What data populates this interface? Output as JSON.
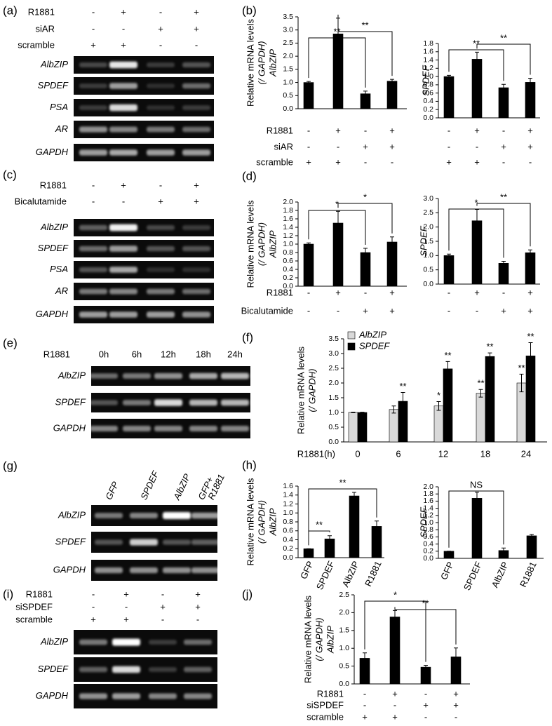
{
  "gels": [
    {
      "panel": "(a)",
      "conditions": [
        {
          "name": "R1881",
          "signs": [
            "-",
            "+",
            "-",
            "+"
          ]
        },
        {
          "name": "siAR",
          "signs": [
            "-",
            "-",
            "+",
            "+"
          ]
        },
        {
          "name": "scramble",
          "signs": [
            "+",
            "+",
            "-",
            "-"
          ]
        }
      ],
      "rows": [
        "AlbZIP",
        "SPDEF",
        "PSA",
        "AR",
        "GAPDH"
      ]
    },
    {
      "panel": "(c)",
      "conditions": [
        {
          "name": "R1881",
          "signs": [
            "-",
            "+",
            "-",
            "+"
          ]
        },
        {
          "name": "Bicalutamide",
          "signs": [
            "-",
            "-",
            "+",
            "+"
          ]
        }
      ],
      "rows": [
        "AlbZIP",
        "SPDEF",
        "PSA",
        "AR",
        "GAPDH"
      ]
    },
    {
      "panel": "(e)",
      "conditions": [
        {
          "name": "R1881",
          "signs": [
            "0h",
            "6h",
            "12h",
            "18h",
            "24h"
          ]
        }
      ],
      "rows": [
        "AlbZIP",
        "SPDEF",
        "GAPDH"
      ]
    },
    {
      "panel": "(g)",
      "lanes": [
        [
          "GFP"
        ],
        [
          "SPDEF"
        ],
        [
          "AlbZIP"
        ],
        [
          "GFP+",
          "R1881"
        ]
      ],
      "rows": [
        "AlbZIP",
        "SPDEF",
        "GAPDH"
      ]
    },
    {
      "panel": "(i)",
      "conditions": [
        {
          "name": "R1881",
          "signs": [
            "-",
            "+",
            "-",
            "+"
          ]
        },
        {
          "name": "siSPDEF",
          "signs": [
            "-",
            "-",
            "+",
            "+"
          ]
        },
        {
          "name": "scramble",
          "signs": [
            "+",
            "+",
            "-",
            "-"
          ]
        }
      ],
      "rows": [
        "AlbZIP",
        "SPDEF",
        "GAPDH"
      ]
    }
  ],
  "chart_data": [
    {
      "type": "bar",
      "panel": "(b)",
      "ylabel": [
        "Relative mRNA levels",
        "(/ GAPDH)",
        "AlbZIP"
      ],
      "ylim": [
        0,
        3.5
      ],
      "yticks": [
        {
          "value": 0,
          "label": "0.0"
        },
        0.5,
        {
          "value": 1,
          "label": "1.0"
        },
        1.5,
        {
          "value": 2,
          "label": "2.0"
        },
        2.5,
        {
          "value": 3,
          "label": "3.0"
        },
        3.5
      ],
      "values": [
        1.0,
        2.85,
        0.57,
        1.05
      ],
      "errors": [
        0.04,
        0.6,
        0.1,
        0.07
      ],
      "color": "#000000",
      "conditions": [
        {
          "name": "R1881",
          "signs": [
            "-",
            "+",
            "-",
            "+"
          ]
        },
        {
          "name": "siAR",
          "signs": [
            "-",
            "-",
            "+",
            "+"
          ]
        },
        {
          "name": "scramble",
          "signs": [
            "+",
            "+",
            "-",
            "-"
          ]
        }
      ],
      "brackets": [
        {
          "from": 0,
          "to": 2,
          "label": "**"
        },
        {
          "from": 1,
          "to": 3,
          "label": "**"
        }
      ]
    },
    {
      "type": "bar",
      "ylabel": [
        "SPDEF"
      ],
      "ylim": [
        0,
        1.8
      ],
      "yticks": [
        {
          "value": 0,
          "label": "0.0"
        },
        0.2,
        0.4,
        0.6,
        0.8,
        {
          "value": 1,
          "label": "1.0"
        },
        1.2,
        1.4,
        1.6,
        1.8
      ],
      "values": [
        1.0,
        1.42,
        0.73,
        0.86
      ],
      "errors": [
        0.03,
        0.17,
        0.08,
        0.1
      ],
      "color": "#000000",
      "conditions": [
        {
          "signs": [
            "-",
            "+",
            "-",
            "+"
          ]
        },
        {
          "signs": [
            "-",
            "-",
            "+",
            "+"
          ]
        },
        {
          "signs": [
            "+",
            "+",
            "-",
            "-"
          ]
        }
      ],
      "brackets": [
        {
          "from": 0,
          "to": 2,
          "label": "**"
        },
        {
          "from": 1,
          "to": 3,
          "label": "**"
        }
      ]
    },
    {
      "type": "bar",
      "panel": "(d)",
      "ylabel": [
        "Relative mRNA levels",
        "(/ GAPDH)",
        "AlbZIP"
      ],
      "ylim": [
        0,
        2
      ],
      "yticks": [
        {
          "value": 0,
          "label": "0.0"
        },
        0.2,
        0.4,
        0.6,
        0.8,
        {
          "value": 1,
          "label": "1.0"
        },
        1.2,
        1.4,
        1.6,
        1.8,
        {
          "value": 2,
          "label": "2.0"
        }
      ],
      "values": [
        1.0,
        1.5,
        0.8,
        1.05
      ],
      "errors": [
        0.03,
        0.28,
        0.1,
        0.12
      ],
      "color": "#000000",
      "conditions": [
        {
          "name": "R1881",
          "signs": [
            "-",
            "+",
            "-",
            "+"
          ]
        },
        {
          "name": "Bicalutamide",
          "signs": [
            "-",
            "-",
            "+",
            "+"
          ]
        }
      ],
      "brackets": [
        {
          "from": 0,
          "to": 2,
          "label": "*"
        },
        {
          "from": 1,
          "to": 3,
          "label": "*"
        }
      ]
    },
    {
      "type": "bar",
      "ylabel": [
        "SPDEF"
      ],
      "ylim": [
        0,
        3
      ],
      "yticks": [
        {
          "value": 0,
          "label": "0.0"
        },
        0.5,
        {
          "value": 1,
          "label": "1.0"
        },
        1.5,
        {
          "value": 2,
          "label": "2.0"
        },
        2.5,
        {
          "value": 3,
          "label": "3.0"
        }
      ],
      "values": [
        1.0,
        2.22,
        0.73,
        1.1
      ],
      "errors": [
        0.05,
        0.4,
        0.07,
        0.1
      ],
      "color": "#000000",
      "conditions": [
        {
          "signs": [
            "-",
            "+",
            "-",
            "+"
          ]
        },
        {
          "signs": [
            "-",
            "-",
            "+",
            "+"
          ]
        }
      ],
      "brackets": [
        {
          "from": 0,
          "to": 2,
          "label": "*"
        },
        {
          "from": 1,
          "to": 3,
          "label": "**"
        }
      ]
    },
    {
      "type": "bar",
      "panel": "(f)",
      "ylabel": [
        "Relative mRNA levels",
        "(/ GAPDH)"
      ],
      "ylim": [
        0,
        3.5
      ],
      "yticks": [
        {
          "value": 0,
          "label": "0.0"
        },
        0.5,
        {
          "value": 1,
          "label": "1.0"
        },
        1.5,
        {
          "value": 2,
          "label": "2.0"
        },
        2.5,
        {
          "value": 3,
          "label": "3.0"
        },
        3.5
      ],
      "categories": [
        "0",
        "6",
        "12",
        "18",
        "24"
      ],
      "xlabel": "R1881(h)",
      "series": [
        {
          "name": "AlbZIP",
          "color": "#d9d9d9",
          "values": [
            1.0,
            1.1,
            1.22,
            1.65,
            2.0
          ],
          "errors": [
            0.01,
            0.12,
            0.15,
            0.13,
            0.3
          ],
          "significance": [
            null,
            null,
            "*",
            "**",
            "**"
          ]
        },
        {
          "name": "SPDEF",
          "color": "#000000",
          "values": [
            1.0,
            1.38,
            2.48,
            2.9,
            2.92
          ],
          "errors": [
            0.01,
            0.3,
            0.25,
            0.12,
            0.45
          ],
          "significance": [
            null,
            "**",
            "**",
            "**",
            "**"
          ]
        }
      ]
    },
    {
      "type": "bar",
      "panel": "(h)",
      "ylabel": [
        "Relative mRNA levels",
        "(/ GAPDH)",
        "AlbZIP"
      ],
      "ylim": [
        0,
        1.6
      ],
      "yticks": [
        {
          "value": 0,
          "label": "0.0"
        },
        0.2,
        0.4,
        0.6,
        0.8,
        {
          "value": 1,
          "label": "1.0"
        },
        1.2,
        1.4,
        1.6
      ],
      "categories": [
        "GFP",
        "SPDEF",
        "AlbZIP",
        "R1881"
      ],
      "values": [
        0.2,
        0.42,
        1.38,
        0.7
      ],
      "errors": [
        0,
        0.07,
        0.08,
        0.12
      ],
      "color": "#000000",
      "brackets": [
        {
          "from": 0,
          "to": 1,
          "label": "**"
        },
        {
          "from": 0,
          "to": 3,
          "label": "**"
        }
      ]
    },
    {
      "type": "bar",
      "ylabel": [
        "SPDEF"
      ],
      "ylim": [
        0,
        2
      ],
      "yticks": [
        {
          "value": 0,
          "label": "0.0"
        },
        0.2,
        0.4,
        0.6,
        0.8,
        {
          "value": 1,
          "label": "1.0"
        },
        1.2,
        1.4,
        1.6,
        1.8,
        {
          "value": 2,
          "label": "2.0"
        }
      ],
      "categories": [
        "GFP",
        "SPDEF",
        "AlbZIP",
        "R1881"
      ],
      "values": [
        0.2,
        1.68,
        0.22,
        0.63
      ],
      "errors": [
        0,
        0.17,
        0.07,
        0.04
      ],
      "color": "#000000",
      "brackets": [
        {
          "from": 0,
          "to": 2,
          "label": "NS"
        }
      ]
    },
    {
      "type": "bar",
      "panel": "(j)",
      "ylabel": [
        "Relative mRNA levels",
        "(/ GAPDH)",
        "AlbZIP"
      ],
      "ylim": [
        0,
        2.5
      ],
      "yticks": [
        {
          "value": 0,
          "label": "0.0"
        },
        0.5,
        {
          "value": 1,
          "label": "1.0"
        },
        1.5,
        {
          "value": 2,
          "label": "2.0"
        },
        2.5
      ],
      "values": [
        0.72,
        1.88,
        0.47,
        0.76
      ],
      "errors": [
        0.15,
        0.18,
        0.05,
        0.25
      ],
      "color": "#000000",
      "conditions": [
        {
          "name": "R1881",
          "signs": [
            "-",
            "+",
            "-",
            "+"
          ]
        },
        {
          "name": "siSPDEF",
          "signs": [
            "-",
            "-",
            "+",
            "+"
          ]
        },
        {
          "name": "scramble",
          "signs": [
            "+",
            "+",
            "-",
            "-"
          ]
        }
      ],
      "brackets": [
        {
          "from": 0,
          "to": 2,
          "label": "*"
        },
        {
          "from": 1,
          "to": 3,
          "label": "**"
        }
      ]
    }
  ]
}
